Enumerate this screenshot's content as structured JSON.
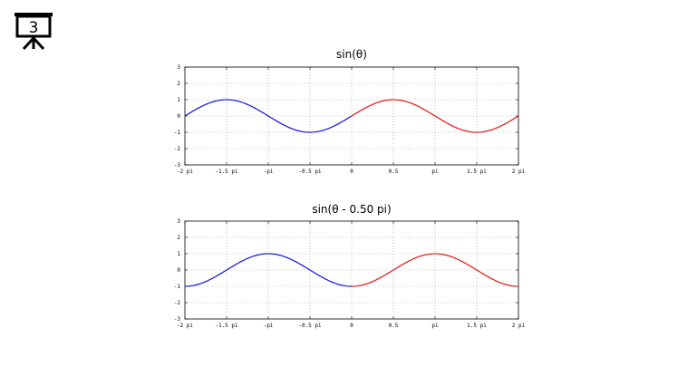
{
  "slide_number": "3",
  "icons": {
    "slide": "presentation-board-icon"
  },
  "colors": {
    "series_neg": "#1f1fe6",
    "series_pos": "#e6231f",
    "grid": "#9a9a9a"
  },
  "chart_data": [
    {
      "type": "line",
      "title": "sin(θ)",
      "xlabel": "",
      "ylabel": "",
      "phase_pi": 0,
      "xlim": [
        -2,
        2
      ],
      "ylim": [
        -3,
        3
      ],
      "grid": true,
      "x_ticks": [
        -2,
        -1.5,
        -1,
        -0.5,
        0,
        0.5,
        1,
        1.5,
        2
      ],
      "x_tick_labels": [
        "-2 pi",
        "-1.5 pi",
        "-pi",
        "-0.5 pi",
        "0",
        "0.5",
        "pi",
        "1.5 pi",
        "2 pi"
      ],
      "y_ticks": [
        3,
        2,
        1,
        0,
        -1,
        -2,
        -3
      ],
      "y_tick_labels": [
        "3",
        "2",
        "1",
        "0",
        "-1",
        "-2",
        "-3"
      ],
      "series": [
        {
          "color": "#1f1fe6",
          "x_range": [
            -2,
            0
          ]
        },
        {
          "color": "#e6231f",
          "x_range": [
            0,
            2
          ]
        }
      ]
    },
    {
      "type": "line",
      "title": "sin(θ - 0.50 pi)",
      "xlabel": "",
      "ylabel": "",
      "phase_pi": 0.5,
      "xlim": [
        -2,
        2
      ],
      "ylim": [
        -3,
        3
      ],
      "grid": true,
      "x_ticks": [
        -2,
        -1.5,
        -1,
        -0.5,
        0,
        0.5,
        1,
        1.5,
        2
      ],
      "x_tick_labels": [
        "-2 pi",
        "-1.5 pi",
        "-pi",
        "-0.5 pi",
        "0",
        "0.5",
        "pi",
        "1.5 pi",
        "2 pi"
      ],
      "y_ticks": [
        3,
        2,
        1,
        0,
        -1,
        -2,
        -3
      ],
      "y_tick_labels": [
        "3",
        "2",
        "1",
        "0",
        "-1",
        "-2",
        "-3"
      ],
      "series": [
        {
          "color": "#1f1fe6",
          "x_range": [
            -2,
            0
          ]
        },
        {
          "color": "#e6231f",
          "x_range": [
            0,
            2
          ]
        }
      ]
    }
  ]
}
